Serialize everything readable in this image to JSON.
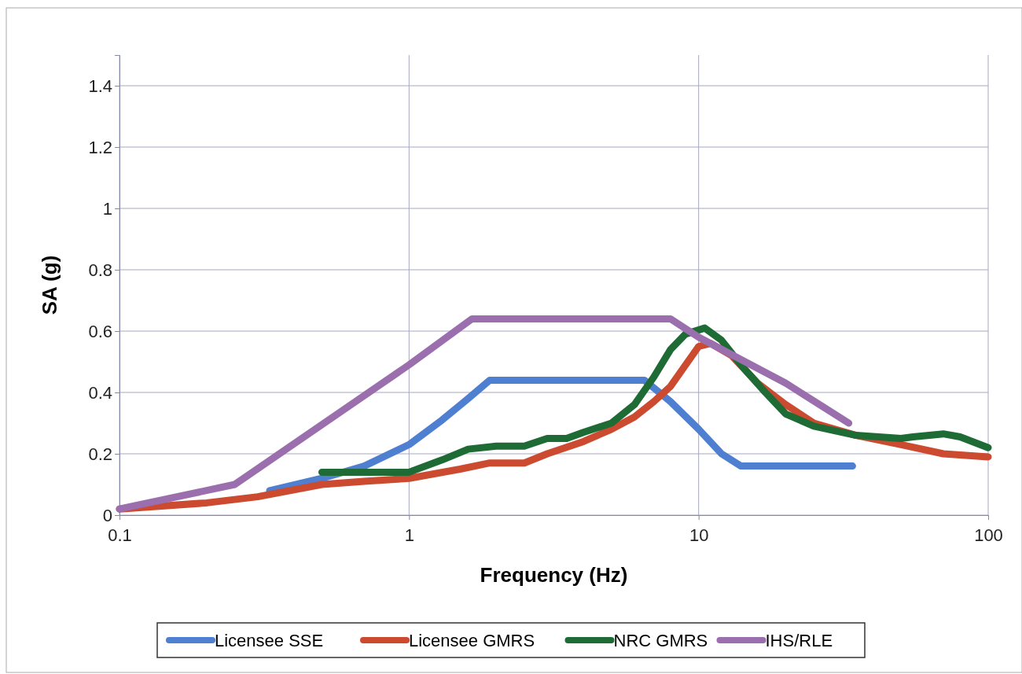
{
  "chart_data": {
    "type": "line",
    "xlabel": "Frequency (Hz)",
    "ylabel": "SA (g)",
    "log": "x",
    "grid": true,
    "legend": "bottom",
    "marker": "none",
    "line_style": "solid",
    "xlim": [
      0.1,
      100
    ],
    "xticks": [
      0.1,
      1,
      10,
      100
    ],
    "ylim": [
      0,
      1.5
    ],
    "yticks": [
      0,
      0.2,
      0.4,
      0.6,
      0.8,
      1,
      1.2,
      1.4
    ],
    "series": [
      {
        "name": "Licensee SSE",
        "color": "#4f7fd0",
        "x": [
          0.33,
          0.5,
          0.7,
          1,
          1.3,
          1.6,
          1.9,
          6.5,
          8,
          10,
          12,
          14,
          34
        ],
        "values": [
          0.08,
          0.12,
          0.16,
          0.23,
          0.31,
          0.38,
          0.44,
          0.44,
          0.37,
          0.28,
          0.2,
          0.16,
          0.16
        ]
      },
      {
        "name": "Licensee GMRS",
        "color": "#cc4a30",
        "x": [
          0.1,
          0.2,
          0.3,
          0.5,
          0.7,
          1,
          1.5,
          1.9,
          2.5,
          3,
          4,
          5,
          6,
          7,
          8,
          10,
          11,
          13,
          16,
          20,
          25,
          35,
          50,
          70,
          100
        ],
        "values": [
          0.02,
          0.04,
          0.06,
          0.1,
          0.11,
          0.12,
          0.15,
          0.17,
          0.17,
          0.2,
          0.24,
          0.28,
          0.32,
          0.37,
          0.42,
          0.55,
          0.56,
          0.52,
          0.43,
          0.36,
          0.3,
          0.26,
          0.23,
          0.2,
          0.19
        ]
      },
      {
        "name": "NRC GMRS",
        "color": "#1e6b35",
        "x": [
          0.5,
          1,
          1.3,
          1.6,
          2,
          2.5,
          3,
          3.5,
          4,
          5,
          6,
          7,
          8,
          9,
          10.5,
          12,
          14,
          17,
          20,
          25,
          35,
          50,
          55,
          70,
          80,
          100
        ],
        "values": [
          0.14,
          0.14,
          0.18,
          0.215,
          0.225,
          0.225,
          0.25,
          0.25,
          0.27,
          0.3,
          0.36,
          0.45,
          0.54,
          0.59,
          0.61,
          0.57,
          0.49,
          0.4,
          0.33,
          0.29,
          0.26,
          0.25,
          0.255,
          0.265,
          0.255,
          0.22
        ]
      },
      {
        "name": "IHS/RLE",
        "color": "#9b6fae",
        "x": [
          0.1,
          0.25,
          1,
          1.65,
          8,
          10,
          20,
          33
        ],
        "values": [
          0.02,
          0.1,
          0.49,
          0.64,
          0.64,
          0.58,
          0.43,
          0.3
        ]
      }
    ]
  }
}
